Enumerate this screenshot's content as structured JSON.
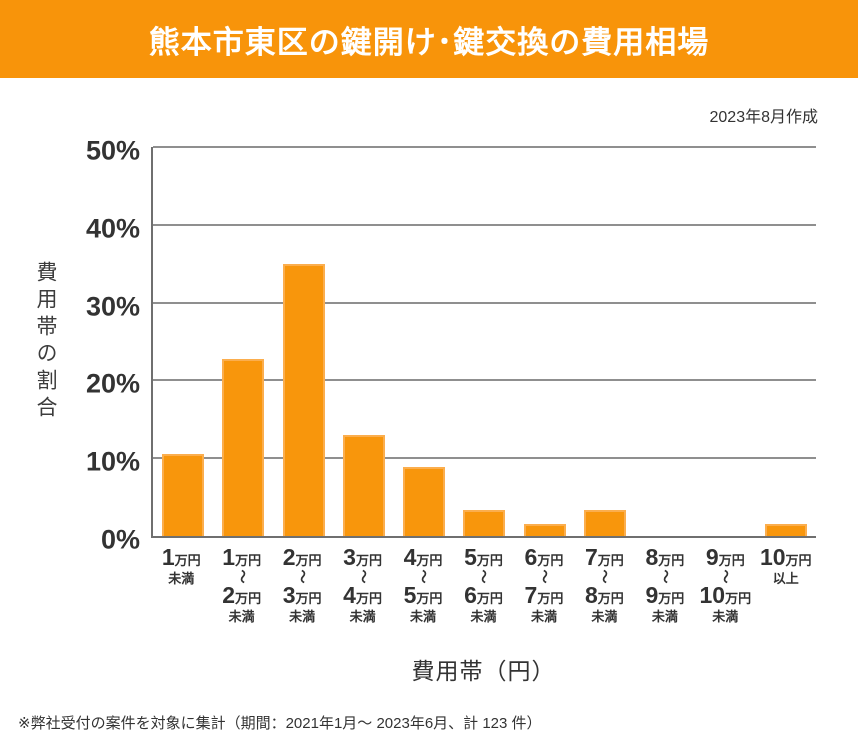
{
  "header": {
    "title": "熊本市東区の鍵開け･鍵交換の費用相場"
  },
  "meta": {
    "created_label": "2023年8月作成"
  },
  "footer": {
    "note": "※弊社受付の案件を対象に集計（期間：2021年1月～ 2023年6月、計 123 件）"
  },
  "colors": {
    "accent_orange": "#F8960C",
    "bar_border": "#FBAE4E",
    "grid": "#8F8F8F",
    "axis": "#6F6F6F",
    "text": "#333333"
  },
  "chart_data": {
    "type": "bar",
    "title": "熊本市東区の鍵開け･鍵交換の費用相場",
    "xlabel": "費用帯（円）",
    "ylabel": "費用帯の割合",
    "ylim": [
      0,
      50
    ],
    "ytick_labels": [
      "50%",
      "40%",
      "30%",
      "20%",
      "10%",
      "0%"
    ],
    "grid": "horizontal",
    "legend": "none",
    "values": [
      10.6,
      22.8,
      35.0,
      13.0,
      8.9,
      3.3,
      1.6,
      3.3,
      0,
      0,
      1.6
    ],
    "categories": [
      {
        "label": "1万円未満",
        "num1": "1",
        "unit1": "万円",
        "wave": "",
        "num2": "",
        "unit2": "",
        "tail": "未満"
      },
      {
        "label": "1万円〜2万円未満",
        "num1": "1",
        "unit1": "万円",
        "wave": "〜",
        "num2": "2",
        "unit2": "万円",
        "tail": "未満"
      },
      {
        "label": "2万円〜3万円未満",
        "num1": "2",
        "unit1": "万円",
        "wave": "〜",
        "num2": "3",
        "unit2": "万円",
        "tail": "未満"
      },
      {
        "label": "3万円〜4万円未満",
        "num1": "3",
        "unit1": "万円",
        "wave": "〜",
        "num2": "4",
        "unit2": "万円",
        "tail": "未満"
      },
      {
        "label": "4万円〜5万円未満",
        "num1": "4",
        "unit1": "万円",
        "wave": "〜",
        "num2": "5",
        "unit2": "万円",
        "tail": "未満"
      },
      {
        "label": "5万円〜6万円未満",
        "num1": "5",
        "unit1": "万円",
        "wave": "〜",
        "num2": "6",
        "unit2": "万円",
        "tail": "未満"
      },
      {
        "label": "6万円〜7万円未満",
        "num1": "6",
        "unit1": "万円",
        "wave": "〜",
        "num2": "7",
        "unit2": "万円",
        "tail": "未満"
      },
      {
        "label": "7万円〜8万円未満",
        "num1": "7",
        "unit1": "万円",
        "wave": "〜",
        "num2": "8",
        "unit2": "万円",
        "tail": "未満"
      },
      {
        "label": "8万円〜9万円未満",
        "num1": "8",
        "unit1": "万円",
        "wave": "〜",
        "num2": "9",
        "unit2": "万円",
        "tail": "未満"
      },
      {
        "label": "9万円〜10万円未満",
        "num1": "9",
        "unit1": "万円",
        "wave": "〜",
        "num2": "10",
        "unit2": "万円",
        "tail": "未満"
      },
      {
        "label": "10万円以上",
        "num1": "10",
        "unit1": "万円",
        "wave": "",
        "num2": "",
        "unit2": "",
        "tail": "以上"
      }
    ]
  }
}
